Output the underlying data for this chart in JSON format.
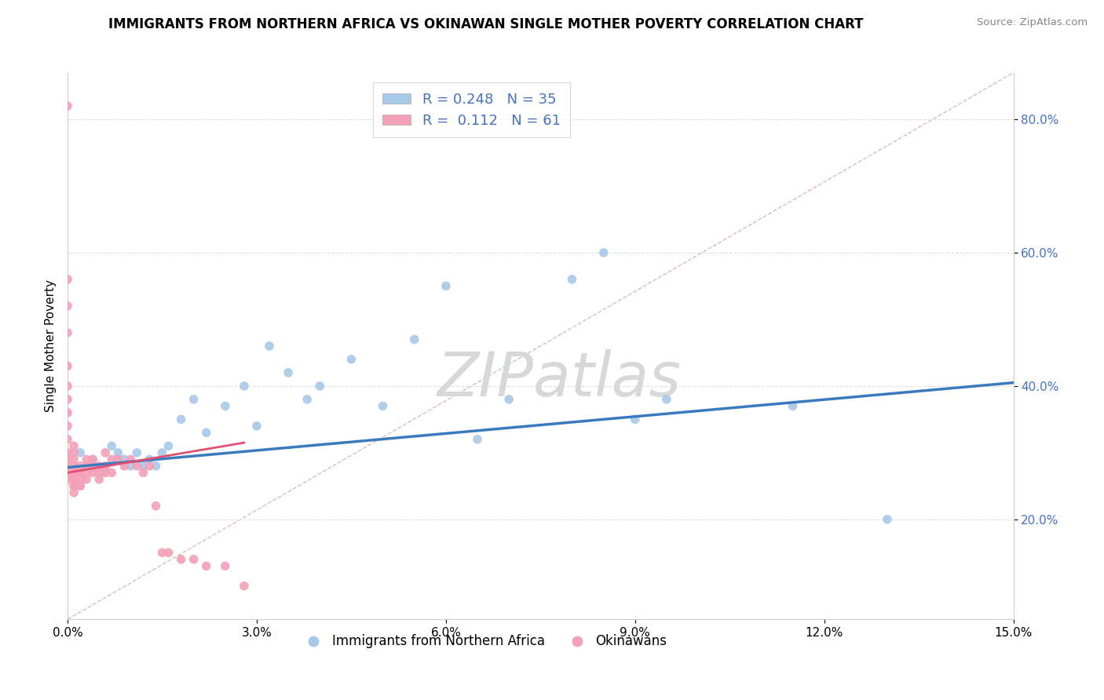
{
  "title": "IMMIGRANTS FROM NORTHERN AFRICA VS OKINAWAN SINGLE MOTHER POVERTY CORRELATION CHART",
  "source": "Source: ZipAtlas.com",
  "ylabel": "Single Mother Poverty",
  "xlim": [
    0.0,
    0.15
  ],
  "ylim": [
    0.05,
    0.87
  ],
  "xticks": [
    0.0,
    0.03,
    0.06,
    0.09,
    0.12,
    0.15
  ],
  "xtick_labels": [
    "0.0%",
    "3.0%",
    "6.0%",
    "9.0%",
    "12.0%",
    "15.0%"
  ],
  "yticks": [
    0.2,
    0.4,
    0.6,
    0.8
  ],
  "ytick_labels": [
    "20.0%",
    "40.0%",
    "60.0%",
    "80.0%"
  ],
  "blue_R": 0.248,
  "blue_N": 35,
  "pink_R": 0.112,
  "pink_N": 61,
  "blue_color": "#a8c8e8",
  "pink_color": "#f4a0b8",
  "blue_edge_color": "#a8c8e8",
  "pink_edge_color": "#f4a0b8",
  "blue_line_color": "#3a7bbf",
  "pink_line_color": "#e05070",
  "diagonal_color": "#ddbbbb",
  "diagonal_style": "--",
  "watermark": "ZIPatlas",
  "watermark_color": "#d8d8d8",
  "blue_points_x": [
    0.002,
    0.004,
    0.006,
    0.007,
    0.008,
    0.009,
    0.01,
    0.011,
    0.012,
    0.013,
    0.014,
    0.015,
    0.016,
    0.018,
    0.02,
    0.022,
    0.025,
    0.028,
    0.03,
    0.032,
    0.035,
    0.038,
    0.04,
    0.045,
    0.05,
    0.055,
    0.06,
    0.065,
    0.07,
    0.08,
    0.085,
    0.09,
    0.095,
    0.115,
    0.13
  ],
  "blue_points_y": [
    0.3,
    0.29,
    0.27,
    0.31,
    0.3,
    0.29,
    0.28,
    0.3,
    0.28,
    0.29,
    0.28,
    0.3,
    0.31,
    0.35,
    0.38,
    0.33,
    0.37,
    0.4,
    0.34,
    0.46,
    0.42,
    0.38,
    0.4,
    0.44,
    0.37,
    0.47,
    0.55,
    0.32,
    0.38,
    0.56,
    0.6,
    0.35,
    0.38,
    0.37,
    0.2
  ],
  "pink_points_x": [
    0.0,
    0.0,
    0.0,
    0.0,
    0.0,
    0.0,
    0.0,
    0.0,
    0.0,
    0.0,
    0.0,
    0.0,
    0.0,
    0.0,
    0.0,
    0.001,
    0.001,
    0.001,
    0.001,
    0.001,
    0.001,
    0.001,
    0.001,
    0.001,
    0.001,
    0.001,
    0.002,
    0.002,
    0.002,
    0.002,
    0.002,
    0.002,
    0.003,
    0.003,
    0.003,
    0.003,
    0.004,
    0.004,
    0.004,
    0.005,
    0.005,
    0.005,
    0.006,
    0.006,
    0.006,
    0.007,
    0.007,
    0.008,
    0.009,
    0.01,
    0.011,
    0.012,
    0.013,
    0.014,
    0.015,
    0.016,
    0.018,
    0.02,
    0.022,
    0.025,
    0.028
  ],
  "pink_points_y": [
    0.82,
    0.56,
    0.52,
    0.48,
    0.43,
    0.4,
    0.38,
    0.36,
    0.34,
    0.32,
    0.3,
    0.29,
    0.28,
    0.27,
    0.26,
    0.31,
    0.3,
    0.29,
    0.28,
    0.27,
    0.27,
    0.26,
    0.26,
    0.25,
    0.25,
    0.24,
    0.28,
    0.27,
    0.27,
    0.26,
    0.25,
    0.25,
    0.29,
    0.28,
    0.27,
    0.26,
    0.29,
    0.28,
    0.27,
    0.28,
    0.27,
    0.26,
    0.3,
    0.28,
    0.27,
    0.29,
    0.27,
    0.29,
    0.28,
    0.29,
    0.28,
    0.27,
    0.28,
    0.22,
    0.15,
    0.15,
    0.14,
    0.14,
    0.13,
    0.13,
    0.1
  ],
  "blue_trend_x": [
    0.0,
    0.15
  ],
  "blue_trend_y": [
    0.278,
    0.405
  ],
  "pink_trend_x": [
    0.0,
    0.028
  ],
  "pink_trend_y": [
    0.27,
    0.315
  ]
}
